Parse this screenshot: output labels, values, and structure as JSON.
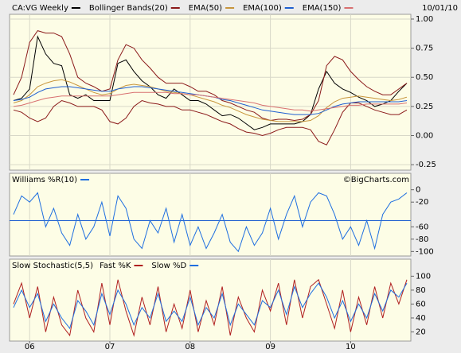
{
  "chart_data": [
    {
      "type": "line",
      "date_label": "10/01/10",
      "xlim": [
        2005.75,
        2010.75
      ],
      "ylim": [
        -0.29,
        1.034
      ],
      "yticks": [
        {
          "value": 1,
          "label": "1.00"
        },
        {
          "value": 0.75,
          "label": "0.75"
        },
        {
          "value": 0.5,
          "label": "0.50"
        },
        {
          "value": 0.25,
          "label": "0.25"
        },
        {
          "value": 0,
          "label": "0.00"
        },
        {
          "value": -0.25,
          "label": "-0.25"
        }
      ],
      "grid": true,
      "x": [
        2005.8,
        2005.9,
        2006.0,
        2006.1,
        2006.2,
        2006.3,
        2006.4,
        2006.5,
        2006.6,
        2006.7,
        2006.8,
        2006.9,
        2007.0,
        2007.1,
        2007.2,
        2007.3,
        2007.4,
        2007.5,
        2007.6,
        2007.7,
        2007.8,
        2007.9,
        2008.0,
        2008.1,
        2008.2,
        2008.3,
        2008.4,
        2008.5,
        2008.6,
        2008.7,
        2008.8,
        2008.9,
        2009.0,
        2009.1,
        2009.2,
        2009.3,
        2009.4,
        2009.5,
        2009.6,
        2009.7,
        2009.8,
        2009.9,
        2010.0,
        2010.1,
        2010.2,
        2010.3,
        2010.4,
        2010.5,
        2010.6,
        2010.7
      ],
      "series": [
        {
          "name": "CA:VG Weekly",
          "color": "#000000",
          "values": [
            0.3,
            0.32,
            0.4,
            0.85,
            0.7,
            0.62,
            0.6,
            0.35,
            0.32,
            0.35,
            0.3,
            0.3,
            0.3,
            0.62,
            0.65,
            0.55,
            0.47,
            0.42,
            0.35,
            0.32,
            0.4,
            0.35,
            0.3,
            0.3,
            0.27,
            0.22,
            0.17,
            0.18,
            0.15,
            0.1,
            0.05,
            0.07,
            0.1,
            0.1,
            0.1,
            0.1,
            0.12,
            0.18,
            0.4,
            0.55,
            0.45,
            0.4,
            0.37,
            0.33,
            0.3,
            0.25,
            0.27,
            0.3,
            0.38,
            0.45
          ]
        },
        {
          "name": "Bollinger Bands(20)",
          "color": "#8b1a1a",
          "values": [
            0.35,
            0.5,
            0.8,
            0.9,
            0.88,
            0.88,
            0.85,
            0.7,
            0.5,
            0.45,
            0.42,
            0.38,
            0.4,
            0.65,
            0.78,
            0.75,
            0.65,
            0.58,
            0.5,
            0.45,
            0.45,
            0.45,
            0.42,
            0.38,
            0.38,
            0.35,
            0.3,
            0.28,
            0.25,
            0.22,
            0.2,
            0.15,
            0.13,
            0.14,
            0.14,
            0.13,
            0.14,
            0.18,
            0.3,
            0.6,
            0.68,
            0.65,
            0.55,
            0.48,
            0.42,
            0.38,
            0.35,
            0.35,
            0.4,
            0.45
          ],
          "lower": [
            0.22,
            0.2,
            0.15,
            0.12,
            0.15,
            0.25,
            0.3,
            0.28,
            0.25,
            0.25,
            0.25,
            0.22,
            0.12,
            0.1,
            0.15,
            0.25,
            0.3,
            0.28,
            0.27,
            0.25,
            0.25,
            0.22,
            0.22,
            0.2,
            0.18,
            0.15,
            0.12,
            0.1,
            0.06,
            0.03,
            0.02,
            0.0,
            0.02,
            0.05,
            0.07,
            0.07,
            0.07,
            0.05,
            -0.05,
            -0.08,
            0.05,
            0.2,
            0.28,
            0.28,
            0.25,
            0.22,
            0.2,
            0.18,
            0.18,
            0.22
          ]
        },
        {
          "name": "EMA(50)",
          "color": "#c8963c",
          "values": [
            0.28,
            0.3,
            0.35,
            0.42,
            0.45,
            0.47,
            0.48,
            0.46,
            0.43,
            0.4,
            0.37,
            0.35,
            0.36,
            0.4,
            0.43,
            0.44,
            0.43,
            0.42,
            0.4,
            0.38,
            0.37,
            0.36,
            0.35,
            0.33,
            0.31,
            0.29,
            0.26,
            0.24,
            0.21,
            0.18,
            0.16,
            0.14,
            0.13,
            0.12,
            0.12,
            0.12,
            0.12,
            0.13,
            0.17,
            0.24,
            0.29,
            0.32,
            0.33,
            0.34,
            0.33,
            0.32,
            0.31,
            0.3,
            0.31,
            0.33
          ]
        },
        {
          "name": "EMA(100)",
          "color": "#1f5fd0",
          "values": [
            0.3,
            0.31,
            0.33,
            0.37,
            0.4,
            0.41,
            0.42,
            0.42,
            0.41,
            0.4,
            0.39,
            0.38,
            0.38,
            0.4,
            0.41,
            0.42,
            0.42,
            0.41,
            0.4,
            0.39,
            0.38,
            0.37,
            0.36,
            0.35,
            0.34,
            0.33,
            0.31,
            0.3,
            0.28,
            0.26,
            0.24,
            0.22,
            0.21,
            0.2,
            0.19,
            0.18,
            0.18,
            0.18,
            0.19,
            0.22,
            0.25,
            0.27,
            0.28,
            0.29,
            0.29,
            0.29,
            0.29,
            0.29,
            0.29,
            0.3
          ]
        },
        {
          "name": "EMA(150)",
          "color": "#d87070",
          "values": [
            0.25,
            0.26,
            0.28,
            0.3,
            0.32,
            0.33,
            0.34,
            0.34,
            0.34,
            0.34,
            0.34,
            0.34,
            0.34,
            0.35,
            0.36,
            0.37,
            0.37,
            0.37,
            0.37,
            0.37,
            0.36,
            0.36,
            0.35,
            0.35,
            0.34,
            0.33,
            0.32,
            0.31,
            0.3,
            0.29,
            0.28,
            0.26,
            0.25,
            0.24,
            0.23,
            0.22,
            0.22,
            0.21,
            0.22,
            0.23,
            0.24,
            0.25,
            0.26,
            0.26,
            0.27,
            0.27,
            0.27,
            0.27,
            0.27,
            0.28
          ]
        }
      ]
    },
    {
      "type": "line",
      "credit": "©BigCharts.com",
      "xlim": [
        2005.75,
        2010.75
      ],
      "ylim": [
        -106,
        6
      ],
      "yticks": [
        0,
        -20,
        -60,
        -80,
        -100
      ],
      "hline": -50,
      "x": [
        2005.8,
        2005.9,
        2006.0,
        2006.1,
        2006.2,
        2006.3,
        2006.4,
        2006.5,
        2006.6,
        2006.7,
        2006.8,
        2006.9,
        2007.0,
        2007.1,
        2007.2,
        2007.3,
        2007.4,
        2007.5,
        2007.6,
        2007.7,
        2007.8,
        2007.9,
        2008.0,
        2008.1,
        2008.2,
        2008.3,
        2008.4,
        2008.5,
        2008.6,
        2008.7,
        2008.8,
        2008.9,
        2009.0,
        2009.1,
        2009.2,
        2009.3,
        2009.4,
        2009.5,
        2009.6,
        2009.7,
        2009.8,
        2009.9,
        2010.0,
        2010.1,
        2010.2,
        2010.3,
        2010.4,
        2010.5,
        2010.6,
        2010.7
      ],
      "series": [
        {
          "name": "Williams %R(10)",
          "color": "#1f6fe0",
          "values": [
            -40,
            -10,
            -20,
            -5,
            -60,
            -30,
            -70,
            -90,
            -40,
            -80,
            -60,
            -20,
            -75,
            -10,
            -30,
            -80,
            -95,
            -50,
            -70,
            -30,
            -85,
            -40,
            -90,
            -60,
            -95,
            -70,
            -40,
            -85,
            -100,
            -60,
            -90,
            -70,
            -30,
            -80,
            -40,
            -10,
            -60,
            -20,
            -5,
            -10,
            -40,
            -80,
            -60,
            -90,
            -50,
            -95,
            -40,
            -20,
            -15,
            -5
          ]
        }
      ]
    },
    {
      "type": "line",
      "title": "Slow Stochastic(5,5)",
      "xlim": [
        2005.75,
        2010.75
      ],
      "ylim": [
        8,
        105
      ],
      "yticks": [
        100,
        80,
        60,
        40,
        20
      ],
      "xticks": [
        {
          "value": 2006,
          "label": "06"
        },
        {
          "value": 2007,
          "label": "07"
        },
        {
          "value": 2008,
          "label": "08"
        },
        {
          "value": 2009,
          "label": "09"
        },
        {
          "value": 2010,
          "label": "10"
        }
      ],
      "x": [
        2005.8,
        2005.9,
        2006.0,
        2006.1,
        2006.2,
        2006.3,
        2006.4,
        2006.5,
        2006.6,
        2006.7,
        2006.8,
        2006.9,
        2007.0,
        2007.1,
        2007.2,
        2007.3,
        2007.4,
        2007.5,
        2007.6,
        2007.7,
        2007.8,
        2007.9,
        2008.0,
        2008.1,
        2008.2,
        2008.3,
        2008.4,
        2008.5,
        2008.6,
        2008.7,
        2008.8,
        2008.9,
        2009.0,
        2009.1,
        2009.2,
        2009.3,
        2009.4,
        2009.5,
        2009.6,
        2009.7,
        2009.8,
        2009.9,
        2010.0,
        2010.1,
        2010.2,
        2010.3,
        2010.4,
        2010.5,
        2010.6,
        2010.7
      ],
      "series": [
        {
          "name": "Fast %K",
          "color": "#b02020",
          "values": [
            60,
            90,
            40,
            85,
            20,
            70,
            30,
            15,
            80,
            40,
            20,
            90,
            30,
            95,
            50,
            15,
            70,
            30,
            85,
            20,
            60,
            25,
            80,
            20,
            65,
            30,
            85,
            15,
            70,
            40,
            20,
            80,
            50,
            90,
            30,
            95,
            40,
            85,
            95,
            60,
            25,
            80,
            20,
            70,
            30,
            85,
            40,
            90,
            60,
            95
          ]
        },
        {
          "name": "Slow %D",
          "color": "#1f6fe0",
          "values": [
            55,
            80,
            55,
            75,
            35,
            60,
            40,
            25,
            65,
            50,
            30,
            75,
            45,
            80,
            60,
            30,
            55,
            40,
            75,
            35,
            50,
            35,
            70,
            30,
            55,
            40,
            75,
            30,
            60,
            45,
            30,
            65,
            55,
            80,
            45,
            85,
            55,
            75,
            90,
            70,
            40,
            65,
            35,
            60,
            40,
            75,
            50,
            80,
            70,
            90
          ]
        }
      ]
    }
  ]
}
